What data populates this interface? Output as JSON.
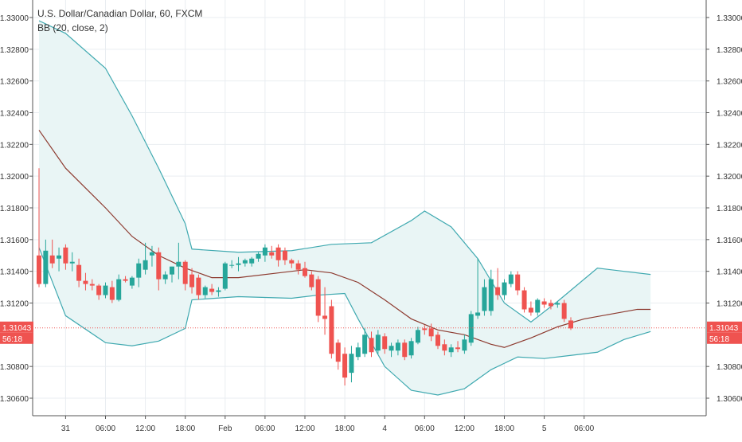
{
  "legend": {
    "symbol_line": "U.S. Dollar/Canadian Dollar, 60, FXCM",
    "indicator_line": "BB (20, close, 2)"
  },
  "price_badge": {
    "price": "1.31043",
    "countdown": "56:18"
  },
  "colors": {
    "up": "#26a69a",
    "down": "#ef5350",
    "band": "#3fa9b0",
    "band_fill": "#e9f5f5",
    "basis": "#8d3a2f",
    "price_line": "#ef5350",
    "grid": "#e9edf1"
  },
  "chart_data": {
    "type": "candlestick",
    "title": "U.S. Dollar/Canadian Dollar, 60, FXCM",
    "ylim": [
      1.305,
      1.331
    ],
    "y_ticks": [
      "1.33000",
      "1.32800",
      "1.32600",
      "1.32400",
      "1.32200",
      "1.32000",
      "1.31800",
      "1.31600",
      "1.31400",
      "1.31200",
      "1.30800",
      "1.30600"
    ],
    "x_ticks": [
      {
        "bar": 4,
        "label": "31"
      },
      {
        "bar": 10,
        "label": "06:00"
      },
      {
        "bar": 16,
        "label": "12:00"
      },
      {
        "bar": 22,
        "label": "18:00"
      },
      {
        "bar": 28,
        "label": "Feb"
      },
      {
        "bar": 34,
        "label": "06:00"
      },
      {
        "bar": 40,
        "label": "12:00"
      },
      {
        "bar": 46,
        "label": "18:00"
      },
      {
        "bar": 52,
        "label": "4"
      },
      {
        "bar": 58,
        "label": "06:00"
      },
      {
        "bar": 64,
        "label": "12:00"
      },
      {
        "bar": 70,
        "label": "18:00"
      },
      {
        "bar": 76,
        "label": "5"
      },
      {
        "bar": 82,
        "label": "06:00"
      }
    ],
    "last_price": 1.31043,
    "candles": [
      [
        1.315,
        1.3205,
        1.313,
        1.3132
      ],
      [
        1.3132,
        1.316,
        1.313,
        1.3153
      ],
      [
        1.315,
        1.316,
        1.3142,
        1.3145
      ],
      [
        1.3148,
        1.3155,
        1.314,
        1.315
      ],
      [
        1.3155,
        1.3157,
        1.3141,
        1.3145
      ],
      [
        1.3145,
        1.3152,
        1.314,
        1.3146
      ],
      [
        1.3144,
        1.3148,
        1.313,
        1.3134
      ],
      [
        1.3134,
        1.3139,
        1.3128,
        1.3132
      ],
      [
        1.3132,
        1.3135,
        1.3128,
        1.3131
      ],
      [
        1.3131,
        1.3132,
        1.3122,
        1.3125
      ],
      [
        1.3125,
        1.3133,
        1.3123,
        1.3131
      ],
      [
        1.313,
        1.3134,
        1.312,
        1.3122
      ],
      [
        1.3122,
        1.3138,
        1.3121,
        1.3135
      ],
      [
        1.3135,
        1.3137,
        1.3133,
        1.3134
      ],
      [
        1.3131,
        1.3137,
        1.3129,
        1.3136
      ],
      [
        1.3136,
        1.3148,
        1.313,
        1.3145
      ],
      [
        1.3141,
        1.3158,
        1.3138,
        1.3147
      ],
      [
        1.315,
        1.3156,
        1.3143,
        1.3152
      ],
      [
        1.3152,
        1.3155,
        1.3128,
        1.3135
      ],
      [
        1.3135,
        1.314,
        1.3132,
        1.3138
      ],
      [
        1.3138,
        1.3143,
        1.3133,
        1.3143
      ],
      [
        1.3143,
        1.3158,
        1.3135,
        1.3146
      ],
      [
        1.3146,
        1.3147,
        1.3128,
        1.3132
      ],
      [
        1.3138,
        1.3142,
        1.3126,
        1.313
      ],
      [
        1.3136,
        1.3138,
        1.3122,
        1.3125
      ],
      [
        1.3125,
        1.3131,
        1.3123,
        1.313
      ],
      [
        1.3129,
        1.3132,
        1.3125,
        1.3127
      ],
      [
        1.3127,
        1.313,
        1.3124,
        1.3128
      ],
      [
        1.3129,
        1.3146,
        1.3128,
        1.3145
      ],
      [
        1.3144,
        1.3147,
        1.3142,
        1.3144
      ],
      [
        1.3144,
        1.3149,
        1.314,
        1.3145
      ],
      [
        1.3145,
        1.3148,
        1.3143,
        1.3147
      ],
      [
        1.3145,
        1.3149,
        1.3143,
        1.3148
      ],
      [
        1.3148,
        1.3152,
        1.3146,
        1.3151
      ],
      [
        1.315,
        1.3157,
        1.3146,
        1.3155
      ],
      [
        1.3152,
        1.3156,
        1.3148,
        1.315
      ],
      [
        1.3155,
        1.3157,
        1.3143,
        1.3147
      ],
      [
        1.3153,
        1.3155,
        1.3144,
        1.3147
      ],
      [
        1.3147,
        1.3148,
        1.3142,
        1.3145
      ],
      [
        1.3145,
        1.3147,
        1.3138,
        1.3141
      ],
      [
        1.3142,
        1.3146,
        1.3136,
        1.3137
      ],
      [
        1.3138,
        1.314,
        1.3128,
        1.313
      ],
      [
        1.3135,
        1.3137,
        1.3108,
        1.3112
      ],
      [
        1.3112,
        1.313,
        1.31,
        1.311
      ],
      [
        1.3118,
        1.3122,
        1.3085,
        1.3088
      ],
      [
        1.3095,
        1.3097,
        1.3078,
        1.3083
      ],
      [
        1.3088,
        1.3092,
        1.3068,
        1.3073
      ],
      [
        1.3076,
        1.3093,
        1.307,
        1.3088
      ],
      [
        1.3086,
        1.3095,
        1.3084,
        1.3092
      ],
      [
        1.3088,
        1.3104,
        1.3086,
        1.31
      ],
      [
        1.3098,
        1.3102,
        1.3086,
        1.3089
      ],
      [
        1.309,
        1.3103,
        1.3088,
        1.31
      ],
      [
        1.3099,
        1.3101,
        1.3088,
        1.3091
      ],
      [
        1.309,
        1.3095,
        1.3086,
        1.3093
      ],
      [
        1.309,
        1.3097,
        1.3087,
        1.3095
      ],
      [
        1.3095,
        1.3097,
        1.3084,
        1.3086
      ],
      [
        1.3087,
        1.3098,
        1.3085,
        1.3096
      ],
      [
        1.3095,
        1.3105,
        1.3094,
        1.3103
      ],
      [
        1.3104,
        1.3106,
        1.31,
        1.3103
      ],
      [
        1.3104,
        1.3107,
        1.3096,
        1.3099
      ],
      [
        1.31,
        1.3102,
        1.3091,
        1.3093
      ],
      [
        1.3094,
        1.3097,
        1.3087,
        1.309
      ],
      [
        1.3089,
        1.3094,
        1.3086,
        1.3092
      ],
      [
        1.3092,
        1.3096,
        1.3089,
        1.3091
      ],
      [
        1.309,
        1.31,
        1.3088,
        1.3097
      ],
      [
        1.3095,
        1.3115,
        1.3093,
        1.3113
      ],
      [
        1.3112,
        1.3148,
        1.311,
        1.3114
      ],
      [
        1.3115,
        1.3135,
        1.3112,
        1.313
      ],
      [
        1.3115,
        1.3141,
        1.3112,
        1.3135
      ],
      [
        1.313,
        1.3142,
        1.3122,
        1.3125
      ],
      [
        1.3125,
        1.3135,
        1.3122,
        1.3133
      ],
      [
        1.3132,
        1.314,
        1.313,
        1.3138
      ],
      [
        1.3138,
        1.314,
        1.3125,
        1.3128
      ],
      [
        1.3128,
        1.313,
        1.3114,
        1.3116
      ],
      [
        1.3117,
        1.3121,
        1.3112,
        1.3114
      ],
      [
        1.3114,
        1.3123,
        1.3112,
        1.3122
      ],
      [
        1.3121,
        1.3123,
        1.3117,
        1.3119
      ],
      [
        1.312,
        1.3122,
        1.3116,
        1.3118
      ],
      [
        1.3119,
        1.3121,
        1.3117,
        1.312
      ],
      [
        1.312,
        1.3122,
        1.3108,
        1.311
      ],
      [
        1.3109,
        1.3111,
        1.3103,
        1.3104
      ]
    ],
    "bollinger": {
      "upper": [
        [
          0,
          1.3298
        ],
        [
          4,
          1.329
        ],
        [
          10,
          1.3268
        ],
        [
          14,
          1.3238
        ],
        [
          18,
          1.3205
        ],
        [
          22,
          1.317
        ],
        [
          23,
          1.3154
        ],
        [
          30,
          1.3152
        ],
        [
          38,
          1.3153
        ],
        [
          44,
          1.3157
        ],
        [
          50,
          1.3158
        ],
        [
          56,
          1.3172
        ],
        [
          58,
          1.3178
        ],
        [
          62,
          1.3168
        ],
        [
          66,
          1.3148
        ],
        [
          70,
          1.312
        ],
        [
          74,
          1.3108
        ],
        [
          78,
          1.3121
        ],
        [
          84,
          1.3142
        ],
        [
          88,
          1.314
        ],
        [
          92,
          1.3138
        ]
      ],
      "lower": [
        [
          0,
          1.3155
        ],
        [
          4,
          1.3112
        ],
        [
          10,
          1.3095
        ],
        [
          14,
          1.3093
        ],
        [
          18,
          1.3096
        ],
        [
          22,
          1.3104
        ],
        [
          23,
          1.3122
        ],
        [
          30,
          1.3124
        ],
        [
          38,
          1.3123
        ],
        [
          42,
          1.3125
        ],
        [
          46,
          1.3126
        ],
        [
          48,
          1.311
        ],
        [
          52,
          1.308
        ],
        [
          56,
          1.3065
        ],
        [
          60,
          1.3062
        ],
        [
          64,
          1.3066
        ],
        [
          68,
          1.3078
        ],
        [
          72,
          1.3086
        ],
        [
          76,
          1.3085
        ],
        [
          80,
          1.3087
        ],
        [
          84,
          1.3089
        ],
        [
          88,
          1.3097
        ],
        [
          92,
          1.3102
        ]
      ],
      "basis": [
        [
          0,
          1.3229
        ],
        [
          4,
          1.3205
        ],
        [
          10,
          1.318
        ],
        [
          14,
          1.3162
        ],
        [
          18,
          1.315
        ],
        [
          22,
          1.3142
        ],
        [
          26,
          1.3136
        ],
        [
          30,
          1.3136
        ],
        [
          36,
          1.3139
        ],
        [
          40,
          1.3141
        ],
        [
          44,
          1.3139
        ],
        [
          48,
          1.3133
        ],
        [
          52,
          1.3122
        ],
        [
          56,
          1.311
        ],
        [
          60,
          1.3103
        ],
        [
          64,
          1.31
        ],
        [
          68,
          1.3094
        ],
        [
          70,
          1.3092
        ],
        [
          74,
          1.3098
        ],
        [
          78,
          1.3105
        ],
        [
          82,
          1.311
        ],
        [
          86,
          1.3113
        ],
        [
          90,
          1.3116
        ],
        [
          92,
          1.3116
        ]
      ]
    }
  }
}
